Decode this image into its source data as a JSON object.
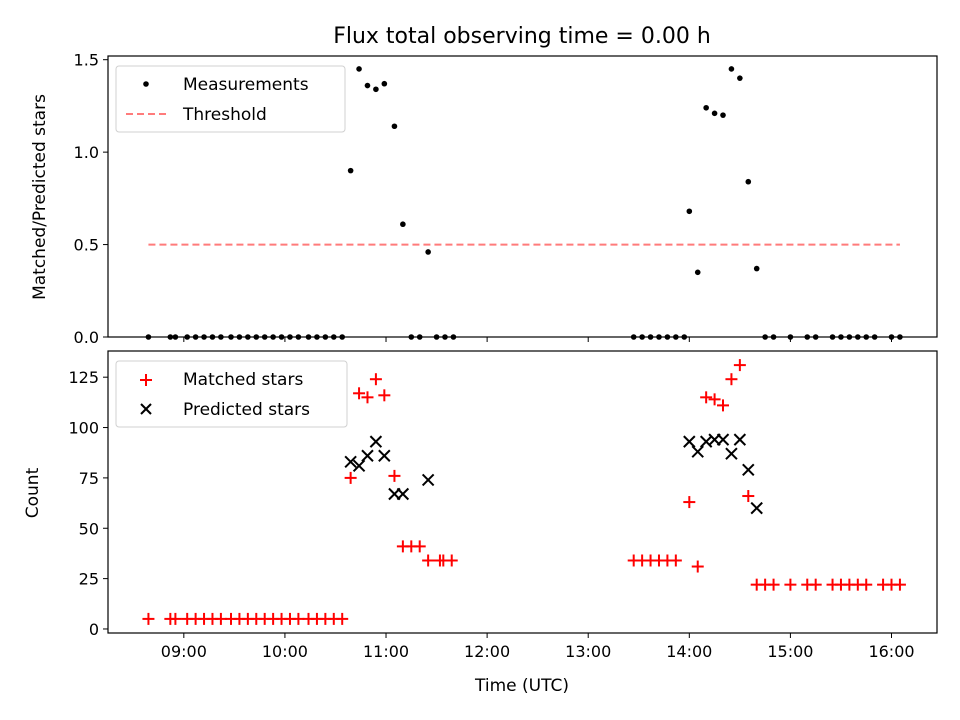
{
  "title": "Flux total observing time = 0.00 h",
  "chart_data": [
    {
      "type": "scatter",
      "ylabel": "Matched/Predicted stars",
      "xlim": [
        "08:15",
        "16:27"
      ],
      "ylim": [
        0,
        1.52
      ],
      "yticks": [
        "0.0",
        "0.5",
        "1.0",
        "1.5"
      ],
      "legend_position": "upper-left",
      "series": [
        {
          "name": "Measurements",
          "marker": "dot",
          "color": "#000000",
          "points": [
            [
              "08:39",
              0
            ],
            [
              "08:52",
              0
            ],
            [
              "08:55",
              0
            ],
            [
              "09:02",
              0
            ],
            [
              "09:07",
              0
            ],
            [
              "09:12",
              0
            ],
            [
              "09:17",
              0
            ],
            [
              "09:22",
              0
            ],
            [
              "09:28",
              0
            ],
            [
              "09:33",
              0
            ],
            [
              "09:38",
              0
            ],
            [
              "09:43",
              0
            ],
            [
              "09:48",
              0
            ],
            [
              "09:53",
              0
            ],
            [
              "09:58",
              0
            ],
            [
              "10:03",
              0
            ],
            [
              "10:08",
              0
            ],
            [
              "10:14",
              0
            ],
            [
              "10:19",
              0
            ],
            [
              "10:24",
              0
            ],
            [
              "10:29",
              0
            ],
            [
              "10:34",
              0
            ],
            [
              "10:39",
              0.9
            ],
            [
              "10:44",
              1.45
            ],
            [
              "10:49",
              1.36
            ],
            [
              "10:54",
              1.34
            ],
            [
              "10:59",
              1.37
            ],
            [
              "11:05",
              1.14
            ],
            [
              "11:10",
              0.61
            ],
            [
              "11:15",
              0
            ],
            [
              "11:20",
              0
            ],
            [
              "11:25",
              0.46
            ],
            [
              "11:30",
              0
            ],
            [
              "11:35",
              0
            ],
            [
              "11:40",
              0
            ],
            [
              "13:27",
              0
            ],
            [
              "13:32",
              0
            ],
            [
              "13:37",
              0
            ],
            [
              "13:42",
              0
            ],
            [
              "13:47",
              0
            ],
            [
              "13:52",
              0
            ],
            [
              "13:57",
              0
            ],
            [
              "14:00",
              0.68
            ],
            [
              "14:05",
              0.35
            ],
            [
              "14:10",
              1.24
            ],
            [
              "14:15",
              1.21
            ],
            [
              "14:20",
              1.2
            ],
            [
              "14:25",
              1.45
            ],
            [
              "14:30",
              1.4
            ],
            [
              "14:35",
              0.84
            ],
            [
              "14:40",
              0.37
            ],
            [
              "14:45",
              0
            ],
            [
              "14:50",
              0
            ],
            [
              "15:00",
              0
            ],
            [
              "15:10",
              0
            ],
            [
              "15:15",
              0
            ],
            [
              "15:25",
              0
            ],
            [
              "15:30",
              0
            ],
            [
              "15:35",
              0
            ],
            [
              "15:40",
              0
            ],
            [
              "15:45",
              0
            ],
            [
              "15:50",
              0
            ],
            [
              "16:00",
              0
            ],
            [
              "16:05",
              0
            ]
          ]
        },
        {
          "name": "Threshold",
          "marker": "dashed-line",
          "color": "#ff7b7b",
          "points": [
            [
              "08:39",
              0.5
            ],
            [
              "16:05",
              0.5
            ]
          ]
        }
      ]
    },
    {
      "type": "scatter",
      "xlabel": "Time (UTC)",
      "ylabel": "Count",
      "xlim": [
        "08:15",
        "16:27"
      ],
      "ylim": [
        -2,
        138
      ],
      "yticks": [
        "0",
        "25",
        "50",
        "75",
        "100",
        "125"
      ],
      "xticks": [
        "09:00",
        "10:00",
        "11:00",
        "12:00",
        "13:00",
        "14:00",
        "15:00",
        "16:00"
      ],
      "legend_position": "upper-left",
      "series": [
        {
          "name": "Matched stars",
          "marker": "plus",
          "color": "#ff0000",
          "points": [
            [
              "08:39",
              5
            ],
            [
              "08:52",
              5
            ],
            [
              "08:55",
              5
            ],
            [
              "09:02",
              5
            ],
            [
              "09:07",
              5
            ],
            [
              "09:12",
              5
            ],
            [
              "09:17",
              5
            ],
            [
              "09:22",
              5
            ],
            [
              "09:28",
              5
            ],
            [
              "09:33",
              5
            ],
            [
              "09:38",
              5
            ],
            [
              "09:43",
              5
            ],
            [
              "09:48",
              5
            ],
            [
              "09:53",
              5
            ],
            [
              "09:58",
              5
            ],
            [
              "10:03",
              5
            ],
            [
              "10:08",
              5
            ],
            [
              "10:14",
              5
            ],
            [
              "10:19",
              5
            ],
            [
              "10:24",
              5
            ],
            [
              "10:29",
              5
            ],
            [
              "10:34",
              5
            ],
            [
              "10:39",
              75
            ],
            [
              "10:44",
              117
            ],
            [
              "10:49",
              115
            ],
            [
              "10:54",
              124
            ],
            [
              "10:59",
              116
            ],
            [
              "11:05",
              76
            ],
            [
              "11:10",
              41
            ],
            [
              "11:15",
              41
            ],
            [
              "11:20",
              41
            ],
            [
              "11:25",
              34
            ],
            [
              "11:32",
              34
            ],
            [
              "11:34",
              34
            ],
            [
              "11:39",
              34
            ],
            [
              "13:27",
              34
            ],
            [
              "13:32",
              34
            ],
            [
              "13:37",
              34
            ],
            [
              "13:42",
              34
            ],
            [
              "13:47",
              34
            ],
            [
              "13:52",
              34
            ],
            [
              "14:00",
              63
            ],
            [
              "14:05",
              31
            ],
            [
              "14:10",
              115
            ],
            [
              "14:15",
              114
            ],
            [
              "14:20",
              111
            ],
            [
              "14:25",
              124
            ],
            [
              "14:30",
              131
            ],
            [
              "14:35",
              66
            ],
            [
              "14:40",
              22
            ],
            [
              "14:45",
              22
            ],
            [
              "14:50",
              22
            ],
            [
              "15:00",
              22
            ],
            [
              "15:10",
              22
            ],
            [
              "15:15",
              22
            ],
            [
              "15:25",
              22
            ],
            [
              "15:30",
              22
            ],
            [
              "15:35",
              22
            ],
            [
              "15:40",
              22
            ],
            [
              "15:45",
              22
            ],
            [
              "15:55",
              22
            ],
            [
              "16:00",
              22
            ],
            [
              "16:05",
              22
            ]
          ]
        },
        {
          "name": "Predicted stars",
          "marker": "x",
          "color": "#000000",
          "points": [
            [
              "10:39",
              83
            ],
            [
              "10:44",
              81
            ],
            [
              "10:49",
              86
            ],
            [
              "10:54",
              93
            ],
            [
              "10:59",
              86
            ],
            [
              "11:05",
              67
            ],
            [
              "11:10",
              67
            ],
            [
              "11:25",
              74
            ],
            [
              "14:00",
              93
            ],
            [
              "14:05",
              88
            ],
            [
              "14:10",
              93
            ],
            [
              "14:15",
              94
            ],
            [
              "14:20",
              94
            ],
            [
              "14:25",
              87
            ],
            [
              "14:30",
              94
            ],
            [
              "14:35",
              79
            ],
            [
              "14:40",
              60
            ]
          ]
        }
      ]
    }
  ]
}
